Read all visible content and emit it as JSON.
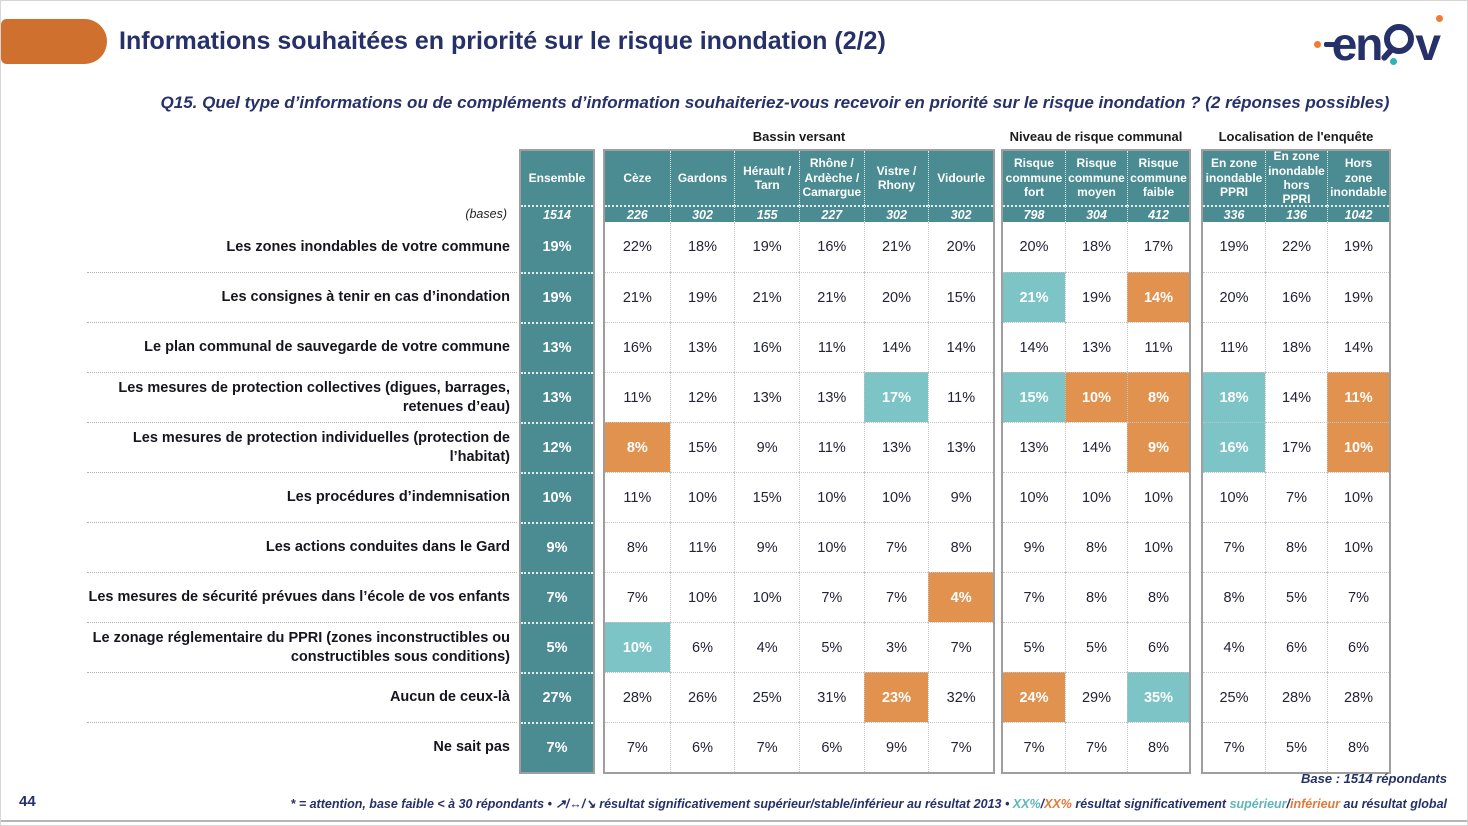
{
  "header": {
    "title": "Informations souhaitées en priorité sur le risque inondation (2/2)",
    "brand_left": "en",
    "brand_right": "v"
  },
  "question": "Q15. Quel type d’informations ou de compléments d’information souhaiteriez-vous recevoir en priorité sur le risque inondation ? (2 réponses possibles)",
  "colors": {
    "teal_header": "#4a8c92",
    "teal_highlight": "#7dc4c6",
    "orange_highlight": "#e2924f",
    "accent_orange": "#d0702f",
    "navy": "#263069"
  },
  "table": {
    "bases_label": "(bases)",
    "ensemble": {
      "label": "Ensemble",
      "base": "1514"
    },
    "groups": [
      {
        "label": "Bassin versant",
        "columns": [
          {
            "label": "Cèze",
            "base": "226"
          },
          {
            "label": "Gardons",
            "base": "302"
          },
          {
            "label": "Hérault / Tarn",
            "base": "155"
          },
          {
            "label": "Rhône / Ardèche / Camargue",
            "base": "227"
          },
          {
            "label": "Vistre / Rhony",
            "base": "302"
          },
          {
            "label": "Vidourle",
            "base": "302"
          }
        ]
      },
      {
        "label": "Niveau de risque communal",
        "columns": [
          {
            "label": "Risque commune fort",
            "base": "798"
          },
          {
            "label": "Risque commune moyen",
            "base": "304"
          },
          {
            "label": "Risque commune faible",
            "base": "412"
          }
        ]
      },
      {
        "label": "Localisation de l'enquête",
        "columns": [
          {
            "label": "En zone inondable PPRI",
            "base": "336"
          },
          {
            "label": "En zone inondable hors PPRI",
            "base": "136"
          },
          {
            "label": "Hors zone inondable",
            "base": "1042"
          }
        ]
      }
    ],
    "highlight_legend": {
      "t": "significativement supérieur",
      "o": "significativement inférieur"
    },
    "rows": [
      {
        "label": "Les zones inondables de votre commune",
        "ensemble": "19%",
        "cells": [
          "22%",
          "18%",
          "19%",
          "16%",
          "21%",
          "20%",
          "20%",
          "18%",
          "17%",
          "19%",
          "22%",
          "19%"
        ]
      },
      {
        "label": "Les consignes à tenir en cas d’inondation",
        "ensemble": "19%",
        "cells": [
          "21%",
          "19%",
          "21%",
          "21%",
          "20%",
          "15%",
          "21%|t",
          "19%",
          "14%|o",
          "20%",
          "16%",
          "19%"
        ]
      },
      {
        "label": "Le plan communal de sauvegarde de votre commune",
        "ensemble": "13%",
        "cells": [
          "16%",
          "13%",
          "16%",
          "11%",
          "14%",
          "14%",
          "14%",
          "13%",
          "11%",
          "11%",
          "18%",
          "14%"
        ]
      },
      {
        "label": "Les mesures de protection collectives (digues, barrages, retenues d’eau)",
        "ensemble": "13%",
        "cells": [
          "11%",
          "12%",
          "13%",
          "13%",
          "17%|t",
          "11%",
          "15%|t",
          "10%|o",
          "8%|o",
          "18%|t",
          "14%",
          "11%|o"
        ]
      },
      {
        "label": "Les mesures de protection individuelles (protection de l’habitat)",
        "ensemble": "12%",
        "cells": [
          "8%|o",
          "15%",
          "9%",
          "11%",
          "13%",
          "13%",
          "13%",
          "14%",
          "9%|o",
          "16%|t",
          "17%",
          "10%|o"
        ]
      },
      {
        "label": "Les procédures d’indemnisation",
        "ensemble": "10%",
        "cells": [
          "11%",
          "10%",
          "15%",
          "10%",
          "10%",
          "9%",
          "10%",
          "10%",
          "10%",
          "10%",
          "7%",
          "10%"
        ]
      },
      {
        "label": "Les actions conduites dans le Gard",
        "ensemble": "9%",
        "cells": [
          "8%",
          "11%",
          "9%",
          "10%",
          "7%",
          "8%",
          "9%",
          "8%",
          "10%",
          "7%",
          "8%",
          "10%"
        ]
      },
      {
        "label": "Les mesures de sécurité prévues dans l’école de vos enfants",
        "ensemble": "7%",
        "cells": [
          "7%",
          "10%",
          "10%",
          "7%",
          "7%",
          "4%|o",
          "7%",
          "8%",
          "8%",
          "8%",
          "5%",
          "7%"
        ]
      },
      {
        "label": "Le zonage réglementaire du PPRI (zones inconstructibles ou constructibles sous conditions)",
        "ensemble": "5%",
        "cells": [
          "10%|t",
          "6%",
          "4%",
          "5%",
          "3%",
          "7%",
          "5%",
          "5%",
          "6%",
          "4%",
          "6%",
          "6%"
        ]
      },
      {
        "label": "Aucun de ceux-là",
        "ensemble": "27%",
        "cells": [
          "28%",
          "26%",
          "25%",
          "31%",
          "23%|o",
          "32%",
          "24%|o",
          "29%",
          "35%|t",
          "25%",
          "28%",
          "28%"
        ]
      },
      {
        "label": "Ne sait pas",
        "ensemble": "7%",
        "cells": [
          "7%",
          "6%",
          "7%",
          "6%",
          "9%",
          "7%",
          "7%",
          "7%",
          "8%",
          "7%",
          "5%",
          "8%"
        ]
      }
    ]
  },
  "footer": {
    "page_number": "44",
    "base_note": "Base : 1514 répondants",
    "note_parts": [
      {
        "text": "* = attention, base faible < à 30 répondants • ",
        "color": "navy"
      },
      {
        "text": "↗/↔/↘",
        "color": "navy"
      },
      {
        "text": " résultat significativement supérieur/stable/inférieur au résultat 2013 • ",
        "color": "navy"
      },
      {
        "text": "XX%",
        "color": "teal"
      },
      {
        "text": "/",
        "color": "navy"
      },
      {
        "text": "XX%",
        "color": "orange"
      },
      {
        "text": " résultat significativement ",
        "color": "navy"
      },
      {
        "text": "supérieur",
        "color": "teal"
      },
      {
        "text": "/",
        "color": "navy"
      },
      {
        "text": "inférieur",
        "color": "orange"
      },
      {
        "text": " au résultat global",
        "color": "navy"
      }
    ]
  }
}
